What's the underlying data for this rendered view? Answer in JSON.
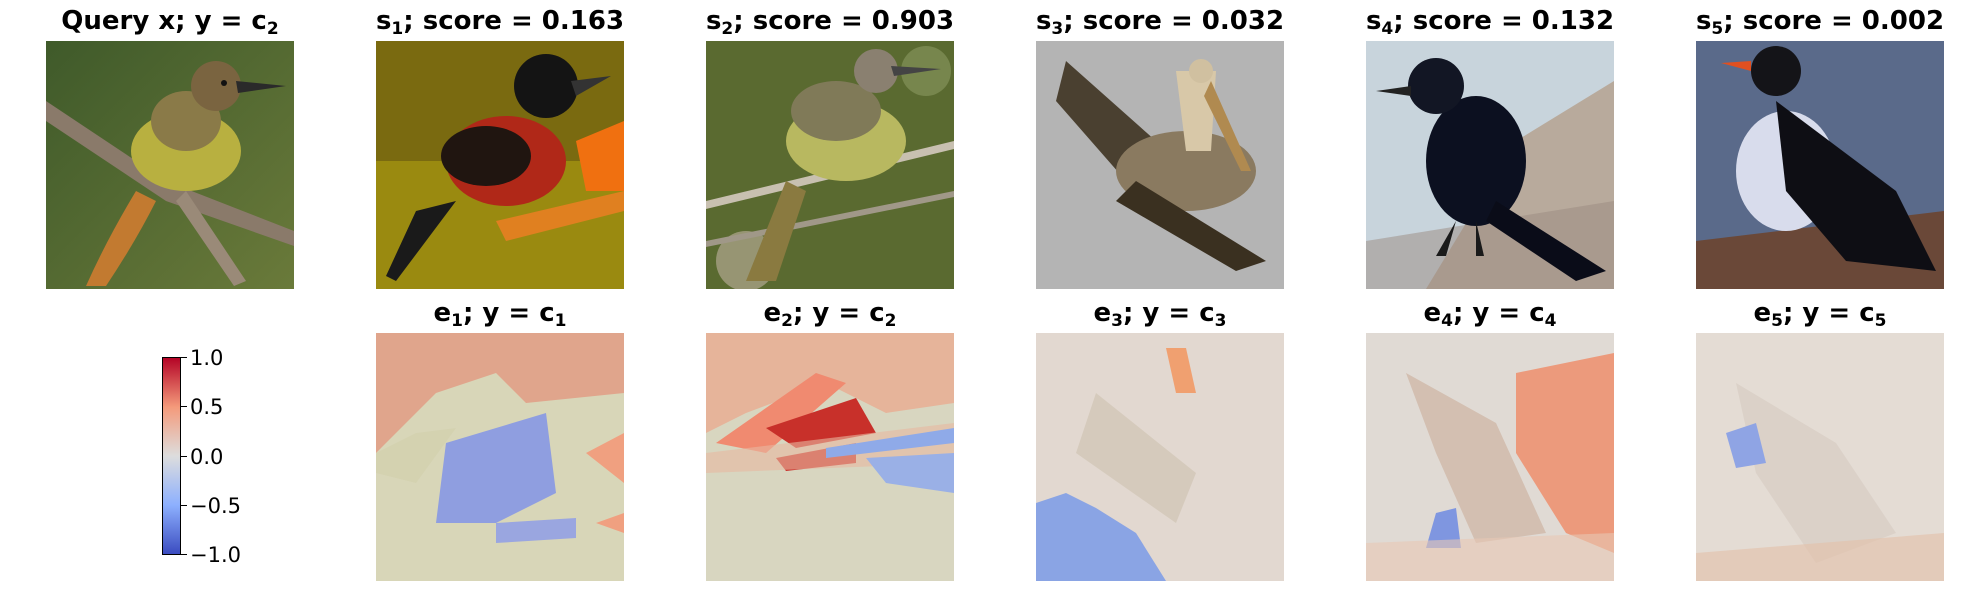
{
  "query": {
    "title_main": "Query x; y = c",
    "title_sub": "2"
  },
  "similars": [
    {
      "prefix": "s",
      "sub": "1",
      "suffix": "; score = 0.163"
    },
    {
      "prefix": "s",
      "sub": "2",
      "suffix": "; score = 0.903"
    },
    {
      "prefix": "s",
      "sub": "3",
      "suffix": "; score = 0.032"
    },
    {
      "prefix": "s",
      "sub": "4",
      "suffix": "; score = 0.132"
    },
    {
      "prefix": "s",
      "sub": "5",
      "suffix": "; score = 0.002"
    }
  ],
  "explanations": [
    {
      "prefix": "e",
      "sub": "1",
      "mid": "; y = c",
      "sub2": "1"
    },
    {
      "prefix": "e",
      "sub": "2",
      "mid": "; y = c",
      "sub2": "2"
    },
    {
      "prefix": "e",
      "sub": "3",
      "mid": "; y = c",
      "sub2": "3"
    },
    {
      "prefix": "e",
      "sub": "4",
      "mid": "; y = c",
      "sub2": "4"
    },
    {
      "prefix": "e",
      "sub": "5",
      "mid": "; y = c",
      "sub2": "5"
    }
  ],
  "colorbar": {
    "ticks": [
      "1.0",
      "0.5",
      "0.0",
      "−0.5",
      "−1.0"
    ],
    "colors": [
      "#b40426",
      "#f49a7b",
      "#dddddd",
      "#8db0fe",
      "#3b4cc0"
    ]
  }
}
